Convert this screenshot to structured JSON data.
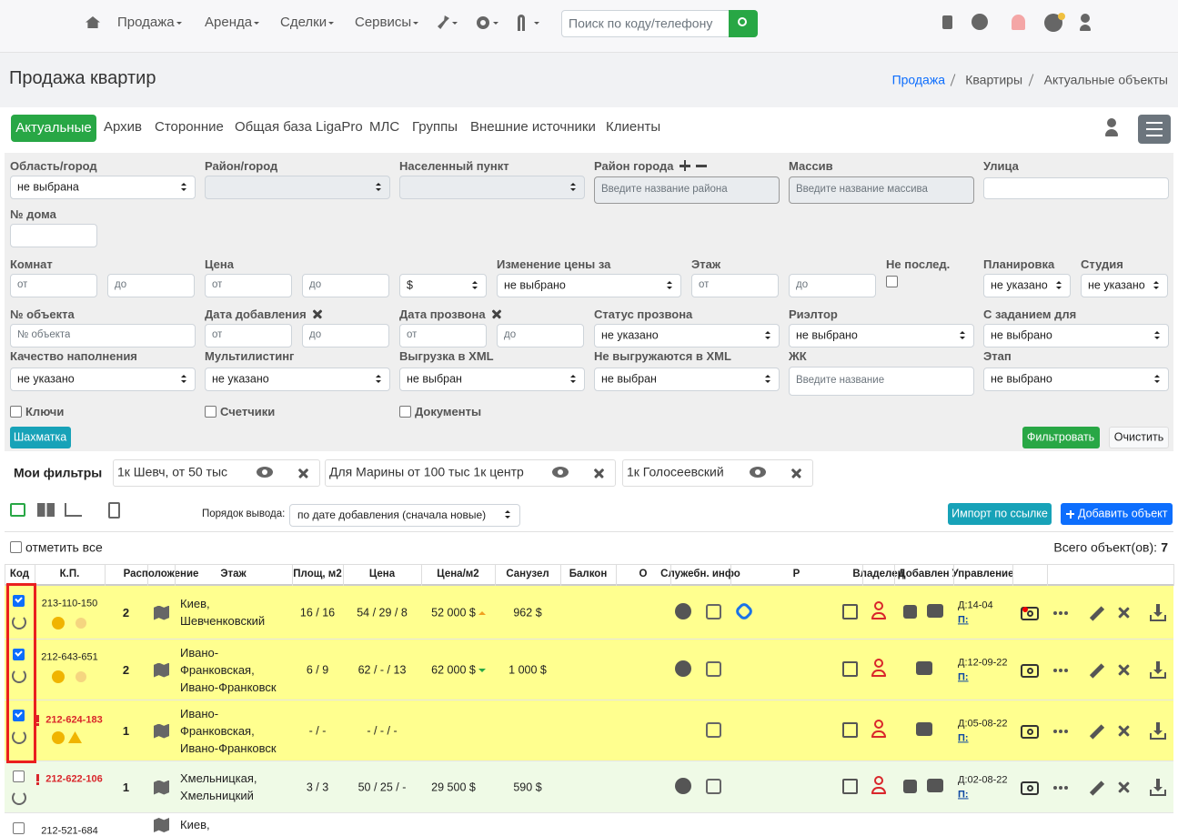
{
  "nav": {
    "items": [
      "Продажа",
      "Аренда",
      "Сделки",
      "Сервисы"
    ],
    "search_placeholder": "Поиск по коду/телефону"
  },
  "header": {
    "title": "Продажа квартир",
    "breadcrumb": [
      "Продажа",
      "Квартиры",
      "Актуальные объекты"
    ]
  },
  "tabs": [
    "Актуальные",
    "Архив",
    "Сторонние",
    "Общая база LigaPro",
    "МЛС",
    "Группы",
    "Внешние источники",
    "Клиенты"
  ],
  "filters": [
    {
      "label": "Область/город",
      "controls": [
        "не выбрана"
      ]
    },
    {
      "label": "Район/город"
    },
    {
      "label": "Населенный пункт"
    },
    {
      "label": "Район города",
      "controls": [
        "Введите название района"
      ]
    },
    {
      "label": "Массив",
      "controls": [
        "Введите название массива"
      ]
    },
    {
      "label": "Улица"
    },
    {
      "label": "№ дома"
    },
    {
      "label": "Комнат",
      "controls": [
        "от",
        "до"
      ]
    },
    {
      "label": "Цена",
      "controls": [
        "от",
        "до",
        "$"
      ]
    },
    {
      "label": "Изменение цены за",
      "controls": [
        "не выбрано"
      ]
    },
    {
      "label": "Этаж",
      "controls": [
        "от",
        "до"
      ]
    },
    {
      "label": "Не послед."
    },
    {
      "label": "Планировка",
      "controls": [
        "не указано"
      ]
    },
    {
      "label": "Студия",
      "controls": [
        "не указано"
      ]
    },
    {
      "label": "№ объекта",
      "controls": [
        "№ объекта"
      ]
    },
    {
      "label": "Дата добавления",
      "controls": [
        "от",
        "до"
      ]
    },
    {
      "label": "Дата прозвона",
      "controls": [
        "от",
        "до"
      ]
    },
    {
      "label": "Статус прозвона",
      "controls": [
        "не указано"
      ]
    },
    {
      "label": "Риэлтор",
      "controls": [
        "не выбрано"
      ]
    },
    {
      "label": "С заданием для",
      "controls": [
        "не выбрано"
      ]
    },
    {
      "label": "Качество наполнения",
      "controls": [
        "не указано"
      ]
    },
    {
      "label": "Мультилистинг",
      "controls": [
        "не указано"
      ]
    },
    {
      "label": "Выгрузка в XML",
      "controls": [
        "не выбран"
      ]
    },
    {
      "label": "Не выгружаются в XML",
      "controls": [
        "не выбран"
      ]
    },
    {
      "label": "ЖК",
      "controls": [
        "Введите название"
      ]
    },
    {
      "label": "Этап",
      "controls": [
        "не выбрано"
      ]
    }
  ],
  "checkboxes": [
    "Ключи",
    "Счетчики",
    "Документы"
  ],
  "buttons": {
    "chess": "Шахматка",
    "filter": "Фильтровать",
    "clear": "Очистить"
  },
  "my_filters": {
    "label": "Мои фильтры",
    "items": [
      "1к Шевч, от 50 тыс",
      "Для Марины от 100 тыс 1к центр",
      "1к Голосеевский"
    ]
  },
  "toolbar": {
    "order_label": "Порядок вывода:",
    "order_value": "по дате добавления (сначала новые)",
    "import": "Импорт по ссылке",
    "add": "Добавить объект"
  },
  "list": {
    "select_all": "отметить все",
    "total_label": "Всего объект(ов):",
    "total": 7
  },
  "table": {
    "headers": [
      "Код",
      "К.П.",
      "Расположение",
      "Этаж",
      "Площ, м2",
      "Цена",
      "Цена/м2",
      "Санузел",
      "Балкон",
      "О",
      "Служебн. инфо",
      "Р",
      "Владелец",
      "Добавлен",
      "Управление"
    ],
    "rows": [
      {
        "checked": true,
        "alert": false,
        "code": "213-110-150",
        "kp": 2,
        "location": [
          "Киев,",
          "Шевченковский"
        ],
        "floor": "16 / 16",
        "area": "54 / 29 / 8",
        "price": "52 000 $",
        "trend": "up",
        "price_per_m2": "962 $",
        "added": "Д:14-04",
        "called": "П:",
        "bg": "#ffff8f"
      },
      {
        "checked": true,
        "alert": false,
        "code": "212-643-651",
        "kp": 2,
        "location": [
          "Ивано-",
          "Франковская,",
          "Ивано-Франковск"
        ],
        "floor": "6 / 9",
        "area": "62 / - / 13",
        "price": "62 000 $",
        "trend": "down",
        "price_per_m2": "1 000 $",
        "added": "Д:12-09-22",
        "called": "П:",
        "bg": "#ffff8f"
      },
      {
        "checked": true,
        "alert": true,
        "code": "212-624-183",
        "kp": 1,
        "location": [
          "Ивано-",
          "Франковская,",
          "Ивано-Франковск"
        ],
        "floor": "- / -",
        "area": "- / - / -",
        "added": "Д:05-08-22",
        "called": "П:",
        "bg": "#ffff8f"
      },
      {
        "checked": false,
        "alert": true,
        "code": "212-622-106",
        "kp": 1,
        "location": [
          "Хмельницкая,",
          "Хмельницкий"
        ],
        "floor": "3 / 3",
        "area": "50 / 25 / -",
        "price": "29 500 $",
        "price_per_m2": "590 $",
        "added": "Д:02-08-22",
        "called": "П:",
        "bg": "#effae6"
      },
      {
        "checked": false,
        "alert": false,
        "code": "212-521-684",
        "location": [
          "Киев,"
        ],
        "bg": "#ffffff"
      }
    ]
  }
}
